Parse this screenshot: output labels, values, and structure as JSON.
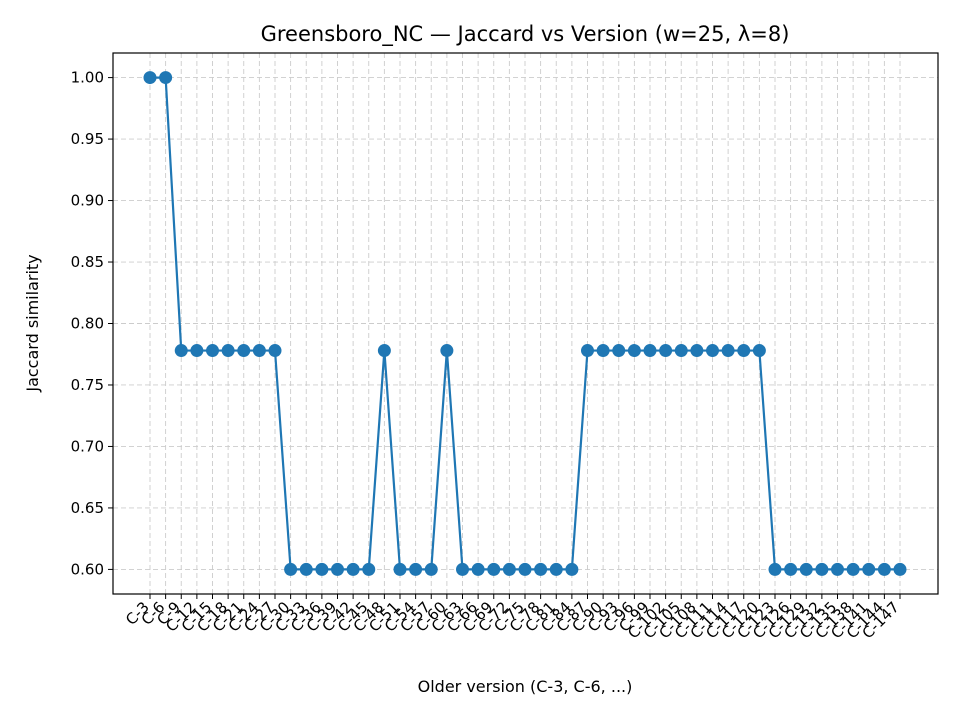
{
  "chart_data": {
    "type": "line",
    "title": "Greensboro_NC — Jaccard vs Version (w=25, λ=8)",
    "xlabel": "Older version (C-3, C-6, ...)",
    "ylabel": "Jaccard similarity",
    "ylim": [
      0.58,
      1.02
    ],
    "yticks": [
      "0.60",
      "0.65",
      "0.70",
      "0.75",
      "0.80",
      "0.85",
      "0.90",
      "0.95",
      "1.00"
    ],
    "grid": true,
    "marker": "circle",
    "color": "#1f77b4",
    "categories": [
      "C-3",
      "C-6",
      "C-9",
      "C-12",
      "C-15",
      "C-18",
      "C-21",
      "C-24",
      "C-27",
      "C-30",
      "C-33",
      "C-36",
      "C-39",
      "C-42",
      "C-45",
      "C-48",
      "C-51",
      "C-54",
      "C-57",
      "C-60",
      "C-63",
      "C-66",
      "C-69",
      "C-72",
      "C-75",
      "C-78",
      "C-81",
      "C-84",
      "C-87",
      "C-90",
      "C-93",
      "C-96",
      "C-99",
      "C-102",
      "C-105",
      "C-108",
      "C-111",
      "C-114",
      "C-117",
      "C-120",
      "C-123",
      "C-126",
      "C-129",
      "C-132",
      "C-135",
      "C-138",
      "C-141",
      "C-144",
      "C-147"
    ],
    "values": [
      1.0,
      1.0,
      0.778,
      0.778,
      0.778,
      0.778,
      0.778,
      0.778,
      0.778,
      0.6,
      0.6,
      0.6,
      0.6,
      0.6,
      0.6,
      0.778,
      0.6,
      0.6,
      0.6,
      0.778,
      0.6,
      0.6,
      0.6,
      0.6,
      0.6,
      0.6,
      0.6,
      0.6,
      0.778,
      0.778,
      0.778,
      0.778,
      0.778,
      0.778,
      0.778,
      0.778,
      0.778,
      0.778,
      0.778,
      0.778,
      0.6,
      0.6,
      0.6,
      0.6,
      0.6,
      0.6,
      0.6,
      0.6,
      0.6
    ]
  }
}
